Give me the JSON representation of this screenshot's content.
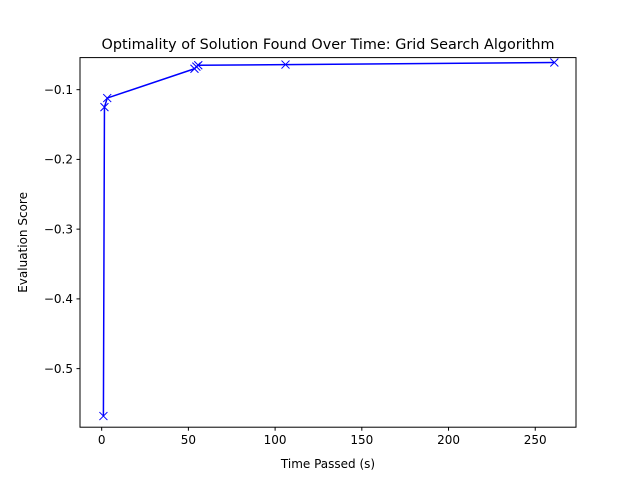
{
  "chart_data": {
    "type": "line",
    "title": "Optimality of Solution Found Over Time: Grid Search Algorithm",
    "xlabel": "Time Passed (s)",
    "ylabel": "Evaluation Score",
    "xlim": [
      -12.5,
      273.5
    ],
    "ylim": [
      -0.584,
      -0.054
    ],
    "xticks": [
      0,
      50,
      100,
      150,
      200,
      250
    ],
    "xtick_labels": [
      "0",
      "50",
      "100",
      "150",
      "200",
      "250"
    ],
    "yticks": [
      -0.5,
      -0.4,
      -0.3,
      -0.2,
      -0.1
    ],
    "ytick_labels": [
      "−0.5",
      "−0.4",
      "−0.3",
      "−0.2",
      "−0.1"
    ],
    "grid": false,
    "series": [
      {
        "color": "#0000ff",
        "marker": "x",
        "x": [
          1.0,
          1.6,
          3.2,
          53.5,
          54.6,
          55.7,
          106.0,
          261.0
        ],
        "y": [
          -0.568,
          -0.125,
          -0.112,
          -0.07,
          -0.067,
          -0.065,
          -0.064,
          -0.061
        ]
      }
    ]
  }
}
